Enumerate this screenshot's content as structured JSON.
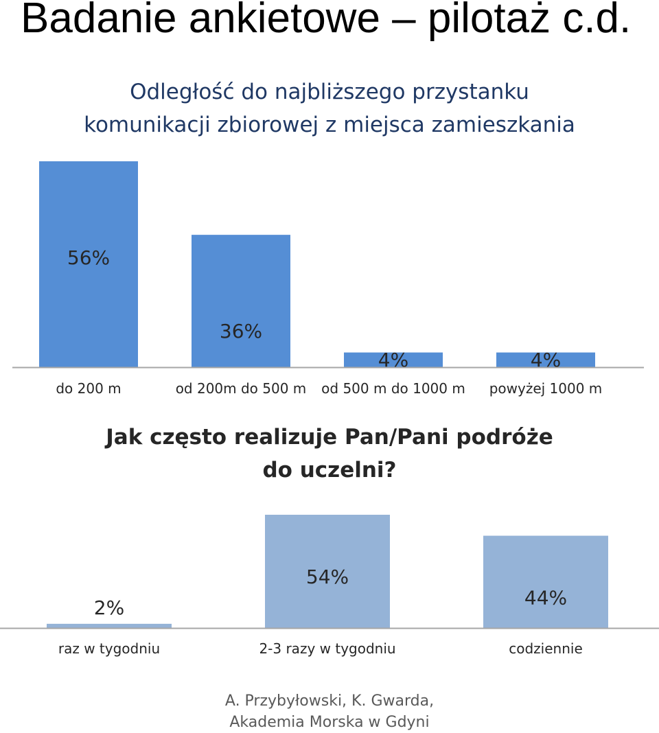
{
  "page": {
    "title": "Badanie ankietowe – pilotaż c.d.",
    "credit": [
      "A.  Przybyłowski, K. Gwarda,",
      "Akademia Morska w Gdyni"
    ]
  },
  "chart_data": [
    {
      "type": "bar",
      "title_lines": [
        "Odległość do najbliższego przystanku",
        "komunikacji zbiorowej z miejsca zamieszkania"
      ],
      "categories": [
        "do 200 m",
        "od 200m do 500 m",
        "od 500 m do 1000 m",
        "powyżej 1000 m"
      ],
      "values": [
        56,
        36,
        4,
        4
      ],
      "value_labels": [
        "56%",
        "36%",
        "4%",
        "4%"
      ],
      "unit": "%",
      "ylim": [
        0,
        56
      ],
      "grid": false,
      "legend": "none",
      "bar_color": "#558ed5"
    },
    {
      "type": "bar",
      "title_lines": [
        "Jak często realizuje Pan/Pani podróże",
        "do uczelni?"
      ],
      "categories": [
        "raz w tygodniu",
        "2-3 razy w tygodniu",
        "codziennie"
      ],
      "values": [
        2,
        54,
        44
      ],
      "value_labels": [
        "2%",
        "54%",
        "44%"
      ],
      "unit": "%",
      "ylim": [
        0,
        54
      ],
      "grid": false,
      "legend": "none",
      "bar_color": "#95b3d7"
    }
  ]
}
